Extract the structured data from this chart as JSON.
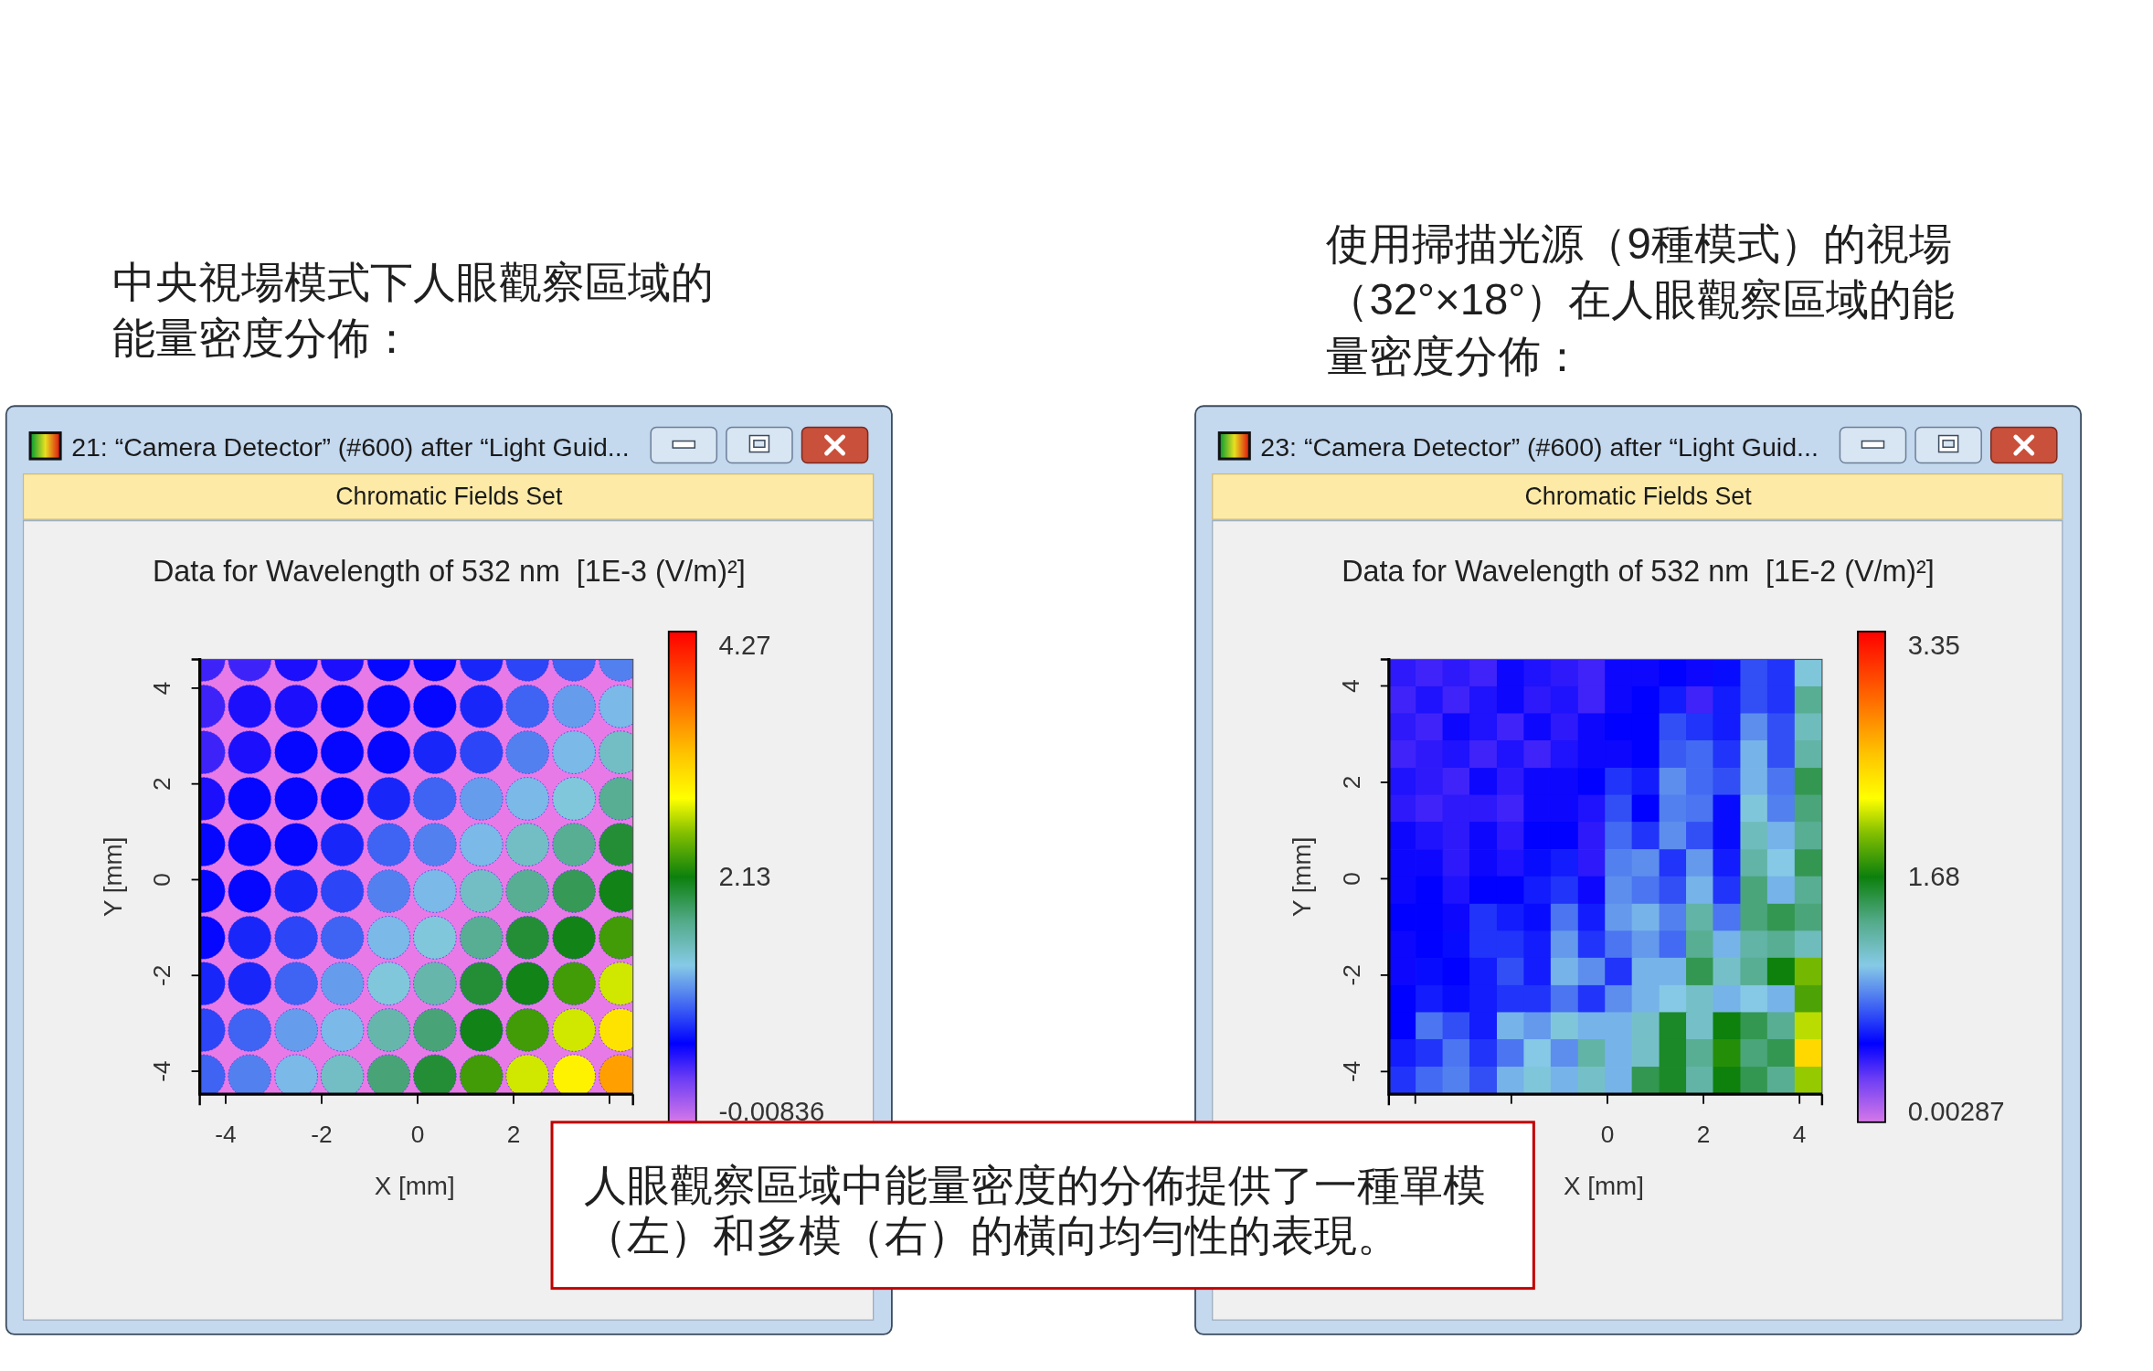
{
  "chart_data": [
    {
      "type": "scatter",
      "title": "Data for Wavelength of 532 nm  [1E-3 (V/m)²]",
      "xlabel": "X [mm]",
      "ylabel": "Y [mm]",
      "annotations": [
        "中央視場模式下人眼觀察區域的能量密度分佈：",
        "21: “Camera Detector” (#600) after “Light Guid...",
        "Chromatic Fields Set"
      ],
      "marker": "circle",
      "x": [
        -4.46,
        -3.5,
        -2.53,
        -1.57,
        -0.6,
        0.36,
        1.33,
        2.29,
        3.26,
        4.23,
        -4.46,
        -3.5,
        -2.53,
        -1.57,
        -0.6,
        0.36,
        1.33,
        2.29,
        3.26,
        4.23,
        -4.46,
        -3.5,
        -2.53,
        -1.57,
        -0.6,
        0.36,
        1.33,
        2.29,
        3.26,
        4.23,
        -4.46,
        -3.5,
        -2.53,
        -1.57,
        -0.6,
        0.36,
        1.33,
        2.29,
        3.26,
        4.23,
        -4.46,
        -3.5,
        -2.53,
        -1.57,
        -0.6,
        0.36,
        1.33,
        2.29,
        3.26,
        4.23,
        -4.46,
        -3.5,
        -2.53,
        -1.57,
        -0.6,
        0.36,
        1.33,
        2.29,
        3.26,
        4.23,
        -4.46,
        -3.5,
        -2.53,
        -1.57,
        -0.6,
        0.36,
        1.33,
        2.29,
        3.26,
        4.23,
        -4.46,
        -3.5,
        -2.53,
        -1.57,
        -0.6,
        0.36,
        1.33,
        2.29,
        3.26,
        4.23,
        -4.46,
        -3.5,
        -2.53,
        -1.57,
        -0.6,
        0.36,
        1.33,
        2.29,
        3.26,
        4.23,
        -4.46,
        -3.5,
        -2.53,
        -1.57,
        -0.6,
        0.36,
        1.33,
        2.29,
        3.26,
        4.23
      ],
      "values": [
        4.59,
        4.59,
        4.59,
        4.59,
        4.59,
        4.59,
        4.59,
        4.59,
        4.59,
        4.59,
        3.62,
        3.62,
        3.62,
        3.62,
        3.62,
        3.62,
        3.62,
        3.62,
        3.62,
        3.62,
        2.66,
        2.66,
        2.66,
        2.66,
        2.66,
        2.66,
        2.66,
        2.66,
        2.66,
        2.66,
        1.69,
        1.69,
        1.69,
        1.69,
        1.69,
        1.69,
        1.69,
        1.69,
        1.69,
        1.69,
        0.73,
        0.73,
        0.73,
        0.73,
        0.73,
        0.73,
        0.73,
        0.73,
        0.73,
        0.73,
        -0.24,
        -0.24,
        -0.24,
        -0.24,
        -0.24,
        -0.24,
        -0.24,
        -0.24,
        -0.24,
        -0.24,
        -1.21,
        -1.21,
        -1.21,
        -1.21,
        -1.21,
        -1.21,
        -1.21,
        -1.21,
        -1.21,
        -1.21,
        -2.17,
        -2.17,
        -2.17,
        -2.17,
        -2.17,
        -2.17,
        -2.17,
        -2.17,
        -2.17,
        -2.17,
        -3.14,
        -3.14,
        -3.14,
        -3.14,
        -3.14,
        -3.14,
        -3.14,
        -3.14,
        -3.14,
        -3.14,
        -4.1,
        -4.1,
        -4.1,
        -4.1,
        -4.1,
        -4.1,
        -4.1,
        -4.1,
        -4.1,
        -4.1
      ],
      "cvalues": [
        0.5,
        0.5,
        0.6,
        0.6,
        0.7,
        0.7,
        0.8,
        0.9,
        1.0,
        1.1,
        0.5,
        0.6,
        0.6,
        0.7,
        0.7,
        0.7,
        0.8,
        1.0,
        1.2,
        1.3,
        0.5,
        0.6,
        0.7,
        0.7,
        0.7,
        0.8,
        0.9,
        1.1,
        1.3,
        1.5,
        0.6,
        0.7,
        0.7,
        0.7,
        0.8,
        1.0,
        1.2,
        1.3,
        1.4,
        1.7,
        0.7,
        0.7,
        0.7,
        0.8,
        1.0,
        1.1,
        1.3,
        1.5,
        1.7,
        2.0,
        0.7,
        0.7,
        0.8,
        0.9,
        1.1,
        1.3,
        1.5,
        1.7,
        1.9,
        2.1,
        0.7,
        0.8,
        0.9,
        1.0,
        1.3,
        1.4,
        1.7,
        2.0,
        2.1,
        2.3,
        0.8,
        0.8,
        1.0,
        1.2,
        1.4,
        1.6,
        2.0,
        2.1,
        2.3,
        2.7,
        0.9,
        1.0,
        1.2,
        1.3,
        1.6,
        1.8,
        2.1,
        2.3,
        2.7,
        3.0,
        1.0,
        1.1,
        1.3,
        1.5,
        1.8,
        2.0,
        2.3,
        2.7,
        2.9,
        3.4
      ],
      "xlim": [
        -4.54,
        4.49
      ],
      "ylim": [
        -4.48,
        4.6
      ],
      "xticks": [
        -4,
        -2,
        0,
        2,
        {
          "value": 4,
          "label": null
        }
      ],
      "yticks": [
        -4,
        -2,
        0,
        2,
        4
      ],
      "clim": [
        -0.00836,
        4.27
      ],
      "cticks": [
        -0.00836,
        2.13,
        4.27
      ],
      "bands": [
        {
          "axis": "x",
          "from": -4.54,
          "to": 4.49,
          "color": "#e87ae8"
        }
      ]
    },
    {
      "type": "scatter",
      "title": "Data for Wavelength of 532 nm  [1E-2 (V/m)²]",
      "xlabel": "X [mm]",
      "ylabel": "Y [mm]",
      "annotations": [
        "使用掃描光源（9種模式）的視場（32°×18°）在人眼觀察區域的能量密度分佈：",
        "23: “Camera Detector” (#600) after “Light Guid...",
        "Chromatic Fields Set"
      ],
      "marker": "square",
      "x": [
        -4.27,
        -3.7,
        -3.14,
        -2.58,
        -2.01,
        -1.45,
        -0.89,
        -0.32,
        0.24,
        0.8,
        1.37,
        1.93,
        2.49,
        3.06,
        3.62,
        4.19,
        -4.27,
        -3.7,
        -3.14,
        -2.58,
        -2.01,
        -1.45,
        -0.89,
        -0.32,
        0.24,
        0.8,
        1.37,
        1.93,
        2.49,
        3.06,
        3.62,
        4.19,
        -4.27,
        -3.7,
        -3.14,
        -2.58,
        -2.01,
        -1.45,
        -0.89,
        -0.32,
        0.24,
        0.8,
        1.37,
        1.93,
        2.49,
        3.06,
        3.62,
        4.19,
        -4.27,
        -3.7,
        -3.14,
        -2.58,
        -2.01,
        -1.45,
        -0.89,
        -0.32,
        0.24,
        0.8,
        1.37,
        1.93,
        2.49,
        3.06,
        3.62,
        4.19,
        -4.27,
        -3.7,
        -3.14,
        -2.58,
        -2.01,
        -1.45,
        -0.89,
        -0.32,
        0.24,
        0.8,
        1.37,
        1.93,
        2.49,
        3.06,
        3.62,
        4.19,
        -4.27,
        -3.7,
        -3.14,
        -2.58,
        -2.01,
        -1.45,
        -0.89,
        -0.32,
        0.24,
        0.8,
        1.37,
        1.93,
        2.49,
        3.06,
        3.62,
        4.19,
        -4.27,
        -3.7,
        -3.14,
        -2.58,
        -2.01,
        -1.45,
        -0.89,
        -0.32,
        0.24,
        0.8,
        1.37,
        1.93,
        2.49,
        3.06,
        3.62,
        4.19,
        -4.27,
        -3.7,
        -3.14,
        -2.58,
        -2.01,
        -1.45,
        -0.89,
        -0.32,
        0.24,
        0.8,
        1.37,
        1.93,
        2.49,
        3.06,
        3.62,
        4.19,
        -4.27,
        -3.7,
        -3.14,
        -2.58,
        -2.01,
        -1.45,
        -0.89,
        -0.32,
        0.24,
        0.8,
        1.37,
        1.93,
        2.49,
        3.06,
        3.62,
        4.19,
        -4.27,
        -3.7,
        -3.14,
        -2.58,
        -2.01,
        -1.45,
        -0.89,
        -0.32,
        0.24,
        0.8,
        1.37,
        1.93,
        2.49,
        3.06,
        3.62,
        4.19,
        -4.27,
        -3.7,
        -3.14,
        -2.58,
        -2.01,
        -1.45,
        -0.89,
        -0.32,
        0.24,
        0.8,
        1.37,
        1.93,
        2.49,
        3.06,
        3.62,
        4.19,
        -4.27,
        -3.7,
        -3.14,
        -2.58,
        -2.01,
        -1.45,
        -0.89,
        -0.32,
        0.24,
        0.8,
        1.37,
        1.93,
        2.49,
        3.06,
        3.62,
        4.19,
        -4.27,
        -3.7,
        -3.14,
        -2.58,
        -2.01,
        -1.45,
        -0.89,
        -0.32,
        0.24,
        0.8,
        1.37,
        1.93,
        2.49,
        3.06,
        3.62,
        4.19,
        -4.27,
        -3.7,
        -3.14,
        -2.58,
        -2.01,
        -1.45,
        -0.89,
        -0.32,
        0.24,
        0.8,
        1.37,
        1.93,
        2.49,
        3.06,
        3.62,
        4.19,
        -4.27,
        -3.7,
        -3.14,
        -2.58,
        -2.01,
        -1.45,
        -0.89,
        -0.32,
        0.24,
        0.8,
        1.37,
        1.93,
        2.49,
        3.06,
        3.62,
        4.19,
        -4.27,
        -3.7,
        -3.14,
        -2.58,
        -2.01,
        -1.45,
        -0.89,
        -0.32,
        0.24,
        0.8,
        1.37,
        1.93,
        2.49,
        3.06,
        3.62,
        4.19
      ],
      "values": [
        4.27,
        4.27,
        4.27,
        4.27,
        4.27,
        4.27,
        4.27,
        4.27,
        4.27,
        4.27,
        4.27,
        4.27,
        4.27,
        4.27,
        4.27,
        4.27,
        3.7,
        3.7,
        3.7,
        3.7,
        3.7,
        3.7,
        3.7,
        3.7,
        3.7,
        3.7,
        3.7,
        3.7,
        3.7,
        3.7,
        3.7,
        3.7,
        3.14,
        3.14,
        3.14,
        3.14,
        3.14,
        3.14,
        3.14,
        3.14,
        3.14,
        3.14,
        3.14,
        3.14,
        3.14,
        3.14,
        3.14,
        3.14,
        2.58,
        2.58,
        2.58,
        2.58,
        2.58,
        2.58,
        2.58,
        2.58,
        2.58,
        2.58,
        2.58,
        2.58,
        2.58,
        2.58,
        2.58,
        2.58,
        2.01,
        2.01,
        2.01,
        2.01,
        2.01,
        2.01,
        2.01,
        2.01,
        2.01,
        2.01,
        2.01,
        2.01,
        2.01,
        2.01,
        2.01,
        2.01,
        1.45,
        1.45,
        1.45,
        1.45,
        1.45,
        1.45,
        1.45,
        1.45,
        1.45,
        1.45,
        1.45,
        1.45,
        1.45,
        1.45,
        1.45,
        1.45,
        0.89,
        0.89,
        0.89,
        0.89,
        0.89,
        0.89,
        0.89,
        0.89,
        0.89,
        0.89,
        0.89,
        0.89,
        0.89,
        0.89,
        0.89,
        0.89,
        0.32,
        0.32,
        0.32,
        0.32,
        0.32,
        0.32,
        0.32,
        0.32,
        0.32,
        0.32,
        0.32,
        0.32,
        0.32,
        0.32,
        0.32,
        0.32,
        -0.24,
        -0.24,
        -0.24,
        -0.24,
        -0.24,
        -0.24,
        -0.24,
        -0.24,
        -0.24,
        -0.24,
        -0.24,
        -0.24,
        -0.24,
        -0.24,
        -0.24,
        -0.24,
        -0.81,
        -0.81,
        -0.81,
        -0.81,
        -0.81,
        -0.81,
        -0.81,
        -0.81,
        -0.81,
        -0.81,
        -0.81,
        -0.81,
        -0.81,
        -0.81,
        -0.81,
        -0.81,
        -1.37,
        -1.37,
        -1.37,
        -1.37,
        -1.37,
        -1.37,
        -1.37,
        -1.37,
        -1.37,
        -1.37,
        -1.37,
        -1.37,
        -1.37,
        -1.37,
        -1.37,
        -1.37,
        -1.93,
        -1.93,
        -1.93,
        -1.93,
        -1.93,
        -1.93,
        -1.93,
        -1.93,
        -1.93,
        -1.93,
        -1.93,
        -1.93,
        -1.93,
        -1.93,
        -1.93,
        -1.93,
        -2.5,
        -2.5,
        -2.5,
        -2.5,
        -2.5,
        -2.5,
        -2.5,
        -2.5,
        -2.5,
        -2.5,
        -2.5,
        -2.5,
        -2.5,
        -2.5,
        -2.5,
        -2.5,
        -3.06,
        -3.06,
        -3.06,
        -3.06,
        -3.06,
        -3.06,
        -3.06,
        -3.06,
        -3.06,
        -3.06,
        -3.06,
        -3.06,
        -3.06,
        -3.06,
        -3.06,
        -3.06,
        -3.62,
        -3.62,
        -3.62,
        -3.62,
        -3.62,
        -3.62,
        -3.62,
        -3.62,
        -3.62,
        -3.62,
        -3.62,
        -3.62,
        -3.62,
        -3.62,
        -3.62,
        -3.62,
        -4.19,
        -4.19,
        -4.19,
        -4.19,
        -4.19,
        -4.19,
        -4.19,
        -4.19,
        -4.19,
        -4.19,
        -4.19,
        -4.19,
        -4.19,
        -4.19,
        -4.19,
        -4.19
      ],
      "cvalues": [
        0.44,
        0.4,
        0.44,
        0.4,
        0.51,
        0.47,
        0.44,
        0.4,
        0.51,
        0.51,
        0.54,
        0.51,
        0.57,
        0.74,
        0.67,
        1.11,
        0.4,
        0.47,
        0.4,
        0.47,
        0.51,
        0.44,
        0.47,
        0.4,
        0.51,
        0.54,
        0.61,
        0.4,
        0.61,
        0.74,
        0.67,
        1.34,
        0.44,
        0.4,
        0.51,
        0.47,
        0.4,
        0.51,
        0.44,
        0.51,
        0.54,
        0.54,
        0.74,
        0.67,
        0.61,
        0.91,
        0.74,
        1.21,
        0.4,
        0.44,
        0.47,
        0.4,
        0.47,
        0.4,
        0.47,
        0.51,
        0.51,
        0.54,
        0.77,
        0.81,
        0.67,
        1.01,
        0.74,
        1.28,
        0.47,
        0.44,
        0.4,
        0.51,
        0.44,
        0.51,
        0.51,
        0.54,
        0.67,
        0.61,
        0.91,
        0.81,
        0.74,
        1.01,
        0.84,
        1.51,
        0.44,
        0.4,
        0.44,
        0.44,
        0.4,
        0.51,
        0.51,
        0.47,
        0.74,
        0.54,
        0.87,
        0.84,
        0.57,
        1.11,
        0.87,
        1.41,
        0.51,
        0.47,
        0.44,
        0.51,
        0.44,
        0.54,
        0.54,
        0.44,
        0.81,
        0.67,
        0.91,
        0.74,
        0.57,
        1.21,
        1.01,
        1.34,
        0.51,
        0.51,
        0.44,
        0.51,
        0.47,
        0.57,
        0.61,
        0.44,
        0.87,
        0.91,
        0.67,
        0.94,
        0.61,
        1.28,
        1.07,
        1.51,
        0.51,
        0.54,
        0.47,
        0.54,
        0.54,
        0.61,
        0.67,
        0.51,
        0.91,
        0.84,
        0.74,
        1.01,
        0.67,
        1.41,
        1.01,
        1.34,
        0.54,
        0.54,
        0.51,
        0.67,
        0.61,
        0.57,
        0.84,
        0.61,
        0.94,
        1.01,
        0.87,
        1.28,
        0.84,
        1.41,
        1.51,
        1.41,
        0.51,
        0.54,
        0.57,
        0.67,
        0.67,
        0.61,
        0.94,
        0.67,
        0.84,
        0.94,
        0.81,
        1.34,
        1.01,
        1.28,
        1.34,
        1.21,
        0.51,
        0.57,
        0.54,
        0.61,
        0.74,
        0.61,
        1.01,
        0.91,
        0.67,
        1.01,
        1.01,
        1.51,
        1.17,
        1.34,
        1.68,
        1.94,
        0.54,
        0.61,
        0.57,
        0.61,
        0.67,
        0.67,
        0.84,
        0.67,
        0.91,
        1.01,
        1.07,
        1.17,
        1.01,
        1.07,
        1.01,
        1.84,
        0.54,
        0.84,
        0.74,
        0.61,
        1.01,
        0.94,
        1.11,
        1.01,
        1.01,
        1.17,
        1.61,
        1.17,
        1.68,
        1.51,
        1.34,
        2.08,
        0.61,
        0.67,
        0.84,
        0.67,
        0.84,
        1.07,
        0.91,
        1.28,
        1.01,
        1.17,
        1.61,
        1.34,
        1.74,
        1.41,
        1.51,
        2.41,
        0.67,
        0.81,
        0.87,
        0.74,
        1.01,
        1.11,
        1.01,
        1.17,
        1.01,
        1.51,
        1.61,
        1.28,
        1.68,
        1.51,
        1.34,
        2.01
      ],
      "xlim": [
        -4.55,
        4.47
      ],
      "ylim": [
        -4.47,
        4.55
      ],
      "xticks": [
        {
          "value": -4,
          "label": null
        },
        {
          "value": -2,
          "label": null
        },
        0,
        2,
        4
      ],
      "yticks": [
        -4,
        -2,
        0,
        2,
        4
      ],
      "clim": [
        0.00287,
        3.35
      ],
      "cticks": [
        0.00287,
        1.68,
        3.35
      ]
    },
    {
      "type": "other",
      "annotations": [
        "人眼觀察區域中能量密度的分佈提供了一種單模（左）和多模（右）的橫向均勻性的表現。"
      ]
    }
  ]
}
